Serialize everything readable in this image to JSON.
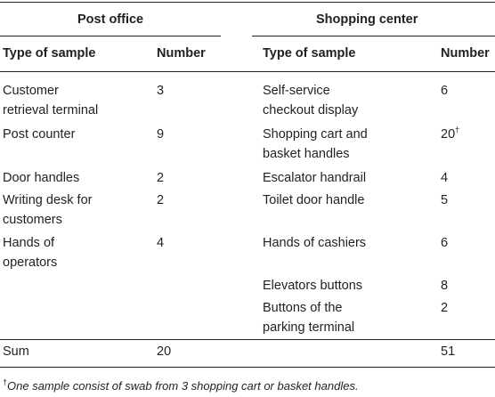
{
  "table": {
    "group_left": "Post office",
    "group_right": "Shopping center",
    "col_type": "Type of sample",
    "col_number": "Number",
    "rows": [
      {
        "po_type_1": "Customer",
        "po_type_2": "retrieval terminal",
        "po_num": "3",
        "sc_type_1": "Self-service",
        "sc_type_2": "checkout display",
        "sc_num": "6"
      },
      {
        "po_type_1": "Post counter",
        "po_type_2": "",
        "po_num": "9",
        "sc_type_1": "Shopping cart and",
        "sc_type_2": "basket handles",
        "sc_num": "20",
        "sc_mark": "†"
      },
      {
        "po_type_1": "Door handles",
        "po_type_2": "",
        "po_num": "2",
        "sc_type_1": "Escalator handrail",
        "sc_type_2": "",
        "sc_num": "4"
      },
      {
        "po_type_1": "Writing desk for",
        "po_type_2": "customers",
        "po_num": "2",
        "sc_type_1": "Toilet door handle",
        "sc_type_2": "",
        "sc_num": "5"
      },
      {
        "po_type_1": "Hands of",
        "po_type_2": "operators",
        "po_num": "4",
        "sc_type_1": "Hands of cashiers",
        "sc_type_2": "",
        "sc_num": "6"
      },
      {
        "po_type_1": "",
        "po_type_2": "",
        "po_num": "",
        "sc_type_1": "Elevators buttons",
        "sc_type_2": "",
        "sc_num": "8"
      },
      {
        "po_type_1": "",
        "po_type_2": "",
        "po_num": "",
        "sc_type_1": "Buttons of the",
        "sc_type_2": "parking terminal",
        "sc_num": "2"
      }
    ],
    "sum_label": "Sum",
    "sum_po": "20",
    "sum_sc": "51"
  },
  "footnote": {
    "mark": "†",
    "text": "One sample consist of swab from 3 shopping cart or basket handles."
  }
}
